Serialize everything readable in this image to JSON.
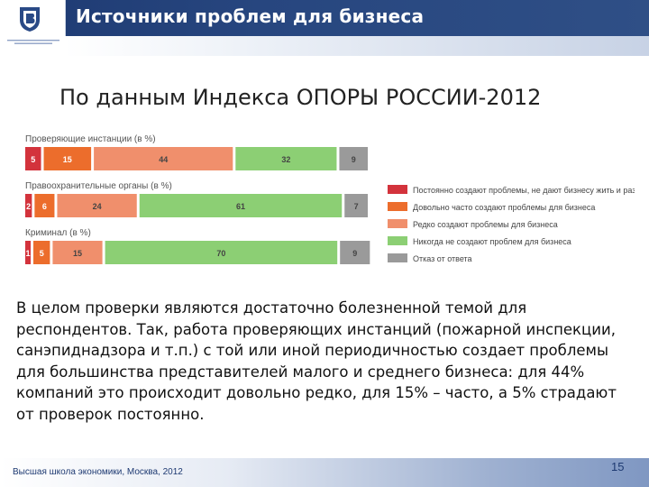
{
  "header": {
    "title": "Источники проблем для бизнеса"
  },
  "subtitle": "По данным Индекса ОПОРЫ РОССИИ-2012",
  "colors": {
    "constant": "#d3333c",
    "often": "#f08f6c",
    "rare": "#ec6d2c",
    "never": "#8ccf74",
    "refuse": "#9a9a9a"
  },
  "chart_data": {
    "type": "bar",
    "orientation": "horizontal-stacked",
    "title": "",
    "categories": [
      "Проверяющие инстанции (в %)",
      "Правоохранительные органы (в %)",
      "Криминал (в %)"
    ],
    "series": [
      {
        "name": "Постоянно создают проблемы, не дают бизнесу жить и развиваться",
        "color_key": "constant",
        "values": [
          5,
          2,
          1
        ]
      },
      {
        "name": "Довольно часто создают проблемы для бизнеса",
        "color_key": "rare",
        "values": [
          15,
          6,
          5
        ]
      },
      {
        "name": "Редко создают проблемы для бизнеса",
        "color_key": "often",
        "values": [
          44,
          24,
          15
        ]
      },
      {
        "name": "Никогда не создают проблем для бизнеса",
        "color_key": "never",
        "values": [
          32,
          61,
          70
        ]
      },
      {
        "name": "Отказ от ответа",
        "color_key": "refuse",
        "values": [
          9,
          7,
          9
        ]
      }
    ],
    "legend_position": "right"
  },
  "paragraph": "В целом проверки являются достаточно болезненной темой для респондентов. Так, работа проверяющих инстанций (пожарной инспекции, санэпиднадзора и т.п.) с той или иной периодичностью создает проблемы для большинства представителей малого и среднего бизнеса: для 44% компаний это происходит довольно редко, для 15% – часто, а 5% страдают от проверок постоянно.",
  "footer": {
    "text": "Высшая школа экономики, Москва, 2012",
    "page_number": "15"
  }
}
